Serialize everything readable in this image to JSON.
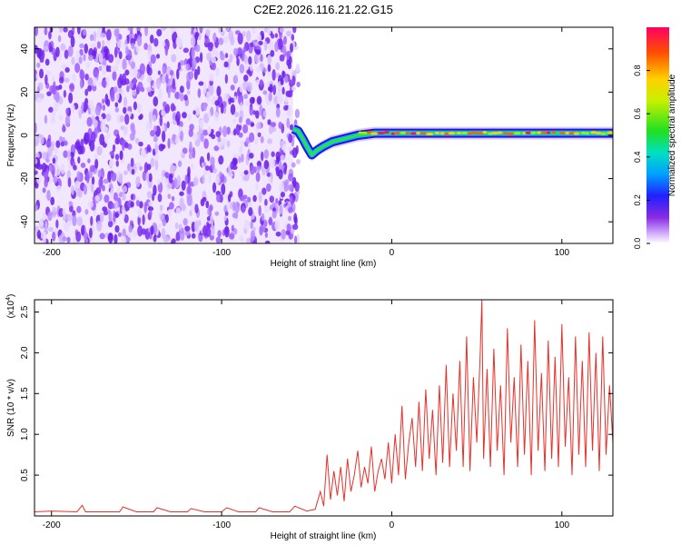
{
  "title": "C2E2.2026.116.21.22.G15",
  "colors": {
    "snr_line": "#e8302a",
    "axes": "#000000",
    "background": "#ffffff"
  },
  "chart_data": [
    {
      "type": "heatmap",
      "name": "spectrogram",
      "xlabel": "Height of straight line (km)",
      "ylabel": "Frequency (Hz)",
      "xlim": [
        -210,
        130
      ],
      "ylim": [
        -50,
        50
      ],
      "x_ticks": [
        -200,
        -100,
        0,
        100
      ],
      "x_tick_labels": [
        "-200",
        "-100",
        "0",
        "100"
      ],
      "y_ticks": [
        -40,
        -20,
        0,
        20,
        40
      ],
      "y_tick_labels": [
        "-40",
        "-20",
        "0",
        "20",
        "40"
      ],
      "noise_region_km": [
        -210,
        -58
      ],
      "signal_track": [
        [
          -58,
          3
        ],
        [
          -55,
          2
        ],
        [
          -52,
          -2
        ],
        [
          -50,
          -5
        ],
        [
          -47,
          -9
        ],
        [
          -44,
          -7
        ],
        [
          -40,
          -5
        ],
        [
          -35,
          -3
        ],
        [
          -30,
          -2
        ],
        [
          -25,
          -1
        ],
        [
          -20,
          0
        ],
        [
          -10,
          1
        ],
        [
          0,
          1
        ],
        [
          20,
          1
        ],
        [
          40,
          1
        ],
        [
          60,
          1
        ],
        [
          80,
          1
        ],
        [
          100,
          1
        ],
        [
          130,
          1
        ]
      ],
      "colorbar": {
        "label": "Normalized spectral amplitude",
        "range": [
          0,
          1
        ],
        "ticks": [
          0.0,
          0.2,
          0.4,
          0.6,
          0.8
        ],
        "tick_labels": [
          "0.0",
          "0.2",
          "0.4",
          "0.6",
          "0.8"
        ]
      }
    },
    {
      "type": "line",
      "name": "snr",
      "xlabel": "Height of straight line (km)",
      "ylabel": "SNR (10 * v/v)",
      "scale_label": "(x10",
      "scale_exponent": "4",
      "xlim": [
        -210,
        130
      ],
      "ylim": [
        0.0,
        2.65
      ],
      "x_ticks": [
        -200,
        -100,
        0,
        100
      ],
      "x_tick_labels": [
        "-200",
        "-100",
        "0",
        "100"
      ],
      "y_ticks": [
        0.5,
        1.0,
        1.5,
        2.0,
        2.5
      ],
      "y_tick_labels": [
        "0.5",
        "1.0",
        "1.5",
        "2.0",
        "2.5"
      ],
      "series": [
        {
          "name": "SNR",
          "x": [
            -210,
            -200,
            -185,
            -182,
            -180,
            -170,
            -160,
            -158,
            -150,
            -140,
            -138,
            -130,
            -120,
            -118,
            -110,
            -100,
            -97,
            -90,
            -80,
            -78,
            -70,
            -60,
            -57,
            -50,
            -45,
            -42,
            -40,
            -38,
            -36,
            -34,
            -32,
            -30,
            -28,
            -26,
            -24,
            -22,
            -20,
            -18,
            -16,
            -14,
            -12,
            -10,
            -8,
            -6,
            -4,
            -2,
            0,
            2,
            4,
            6,
            8,
            10,
            12,
            14,
            16,
            18,
            20,
            22,
            24,
            26,
            28,
            30,
            32,
            34,
            36,
            38,
            40,
            42,
            44,
            46,
            48,
            50,
            52,
            53,
            54,
            56,
            58,
            60,
            62,
            64,
            66,
            68,
            70,
            72,
            74,
            76,
            78,
            80,
            82,
            84,
            86,
            88,
            90,
            92,
            94,
            96,
            98,
            100,
            102,
            104,
            106,
            108,
            110,
            112,
            114,
            116,
            118,
            120,
            122,
            124,
            126,
            128,
            130
          ],
          "y": [
            0.05,
            0.06,
            0.05,
            0.13,
            0.05,
            0.05,
            0.05,
            0.11,
            0.05,
            0.05,
            0.1,
            0.05,
            0.05,
            0.09,
            0.05,
            0.05,
            0.1,
            0.05,
            0.05,
            0.1,
            0.05,
            0.05,
            0.12,
            0.06,
            0.08,
            0.3,
            0.12,
            0.75,
            0.2,
            0.55,
            0.25,
            0.6,
            0.18,
            0.7,
            0.3,
            0.5,
            0.8,
            0.35,
            0.6,
            0.4,
            0.85,
            0.3,
            0.55,
            0.7,
            0.45,
            0.9,
            0.4,
            1.0,
            0.5,
            1.35,
            0.45,
            0.9,
            1.2,
            0.6,
            1.4,
            0.55,
            1.55,
            0.7,
            1.3,
            0.5,
            1.6,
            0.65,
            1.85,
            0.6,
            1.5,
            0.8,
            1.9,
            0.6,
            2.2,
            0.55,
            1.7,
            0.9,
            2.0,
            2.65,
            0.7,
            1.8,
            0.6,
            2.05,
            0.8,
            1.6,
            0.5,
            2.3,
            0.9,
            1.7,
            0.6,
            2.1,
            0.75,
            1.9,
            0.5,
            2.4,
            0.8,
            1.75,
            0.55,
            2.15,
            0.7,
            1.95,
            0.6,
            2.35,
            0.85,
            1.7,
            0.5,
            2.2,
            0.75,
            1.9,
            0.6,
            2.25,
            0.8,
            2.0,
            0.55,
            2.2,
            0.75,
            1.6,
            0.9
          ]
        }
      ]
    }
  ]
}
